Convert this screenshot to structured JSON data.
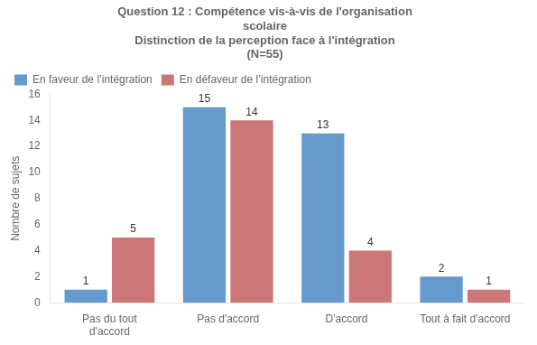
{
  "chart_data": {
    "type": "bar",
    "title": "Question 12 : Compétence vis-à-vis de l'organisation\nscolaire\nDistinction de la perception face à l'intégration\n(N=55)",
    "categories": [
      "Pas du tout\nd'accord",
      "Pas d'accord",
      "D'accord",
      "Tout à fait d'accord"
    ],
    "series": [
      {
        "name": "En faveur de l’intégration",
        "color": "#6699CC",
        "values": [
          1,
          15,
          13,
          2
        ]
      },
      {
        "name": "En défaveur de l’intégration",
        "color": "#CC7777",
        "values": [
          5,
          14,
          4,
          1
        ]
      }
    ],
    "ylabel": "Nombre de sujets",
    "ylim": [
      0,
      16
    ],
    "yticks": [
      0,
      2,
      4,
      6,
      8,
      10,
      12,
      14,
      16
    ],
    "grid": false,
    "legend": "top",
    "data_labels": true
  }
}
